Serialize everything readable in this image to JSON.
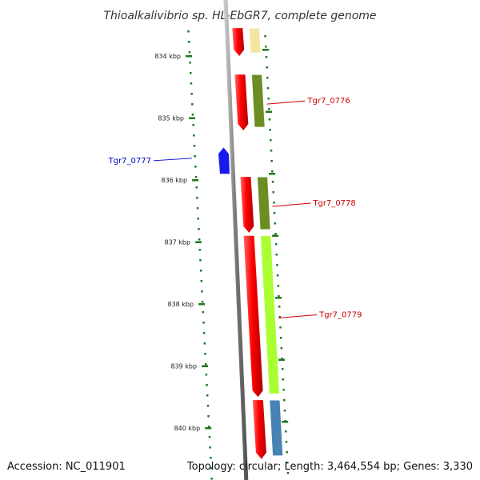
{
  "title": "Thioalkalivibrio sp. HL-EbGR7, complete genome",
  "footer": {
    "accession": "Accession: NC_011901",
    "summary": "Topology: circular; Length: 3,464,554 bp; Genes: 3,330"
  },
  "colors": {
    "backbone": "#8a8a8a",
    "ticks": "#1e7a1e",
    "cds": "#ee1111",
    "label_red": "#cc0000",
    "label_blue": "#0000cc",
    "rna": "#1a1aee"
  },
  "scale": {
    "ticks": [
      {
        "kbp": 834,
        "label": "834 kbp"
      },
      {
        "kbp": 835,
        "label": "835 kbp"
      },
      {
        "kbp": 836,
        "label": "836 kbp"
      },
      {
        "kbp": 837,
        "label": "837 kbp"
      },
      {
        "kbp": 838,
        "label": "838 kbp"
      },
      {
        "kbp": 839,
        "label": "839 kbp"
      },
      {
        "kbp": 840,
        "label": "840 kbp"
      }
    ]
  },
  "genes": [
    {
      "name": "",
      "start_kbp": 833.55,
      "end_kbp": 834.0,
      "strand": "-",
      "color": "#ee1111",
      "cog_color": "#f2e6a0"
    },
    {
      "name": "Tgr7_0776",
      "start_kbp": 834.3,
      "end_kbp": 835.2,
      "strand": "-",
      "color": "#ee1111",
      "cog_color": "#6b8e23"
    },
    {
      "name": "Tgr7_0777",
      "start_kbp": 835.45,
      "end_kbp": 835.9,
      "strand": "+",
      "color": "#1a1aee",
      "cog_color": ""
    },
    {
      "name": "Tgr7_0778",
      "start_kbp": 835.95,
      "end_kbp": 836.85,
      "strand": "-",
      "color": "#ee1111",
      "cog_color": "#6b8e23"
    },
    {
      "name": "Tgr7_0779",
      "start_kbp": 836.9,
      "end_kbp": 839.5,
      "strand": "-",
      "color": "#ee1111",
      "cog_color": "#aaff33"
    },
    {
      "name": "",
      "start_kbp": 839.55,
      "end_kbp": 840.5,
      "strand": "-",
      "color": "#ee1111",
      "cog_color": "#4682b4"
    }
  ]
}
